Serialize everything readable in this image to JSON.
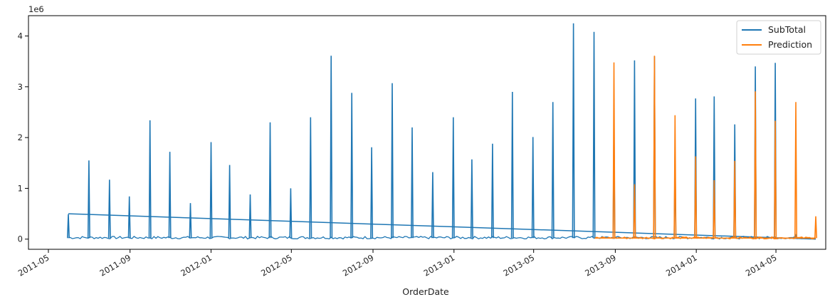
{
  "chart_data": {
    "type": "line",
    "title": "",
    "xlabel": "OrderDate",
    "ylabel": "",
    "y_offset_label": "1e6",
    "xlim": [
      "2011-04-01",
      "2014-07-15"
    ],
    "ylim": [
      -0.2,
      4.4
    ],
    "x_ticks": [
      "2011-05",
      "2011-09",
      "2012-01",
      "2012-05",
      "2012-09",
      "2013-01",
      "2013-05",
      "2013-09",
      "2014-01",
      "2014-05"
    ],
    "y_ticks": [
      0,
      1,
      2,
      3,
      4
    ],
    "grid": false,
    "legend": "top-right",
    "series": [
      {
        "name": "SubTotal",
        "color": "#1f77b4",
        "baseline_start": [
          "2011-05-31",
          0.5
        ],
        "baseline_end": [
          "2014-06-30",
          0.0
        ],
        "spikes": [
          [
            "2011-05-31",
            0.49
          ],
          [
            "2011-07-01",
            1.55
          ],
          [
            "2011-08-01",
            1.17
          ],
          [
            "2011-08-31",
            0.84
          ],
          [
            "2011-10-01",
            2.34
          ],
          [
            "2011-10-31",
            1.72
          ],
          [
            "2011-12-01",
            0.71
          ],
          [
            "2012-01-01",
            1.91
          ],
          [
            "2012-01-29",
            1.46
          ],
          [
            "2012-02-29",
            0.88
          ],
          [
            "2012-03-30",
            2.3
          ],
          [
            "2012-04-30",
            1.0
          ],
          [
            "2012-05-30",
            2.4
          ],
          [
            "2012-06-30",
            3.61
          ],
          [
            "2012-07-31",
            2.88
          ],
          [
            "2012-08-30",
            1.81
          ],
          [
            "2012-09-30",
            3.07
          ],
          [
            "2012-10-30",
            2.2
          ],
          [
            "2012-11-30",
            1.32
          ],
          [
            "2012-12-31",
            2.4
          ],
          [
            "2013-01-28",
            1.57
          ],
          [
            "2013-02-28",
            1.88
          ],
          [
            "2013-03-30",
            2.9
          ],
          [
            "2013-04-30",
            2.01
          ],
          [
            "2013-05-30",
            2.7
          ],
          [
            "2013-06-30",
            4.25
          ],
          [
            "2013-07-31",
            4.08
          ],
          [
            "2013-08-30",
            2.35
          ],
          [
            "2013-09-30",
            3.52
          ],
          [
            "2013-10-30",
            3.6
          ],
          [
            "2013-11-30",
            1.7
          ],
          [
            "2013-12-31",
            2.77
          ],
          [
            "2014-01-28",
            2.81
          ],
          [
            "2014-02-28",
            2.26
          ],
          [
            "2014-03-31",
            3.4
          ],
          [
            "2014-04-30",
            3.47
          ],
          [
            "2014-05-31",
            0.07
          ]
        ]
      },
      {
        "name": "Prediction",
        "color": "#ff7f0e",
        "baseline_start": [
          "2013-08-01",
          0.02
        ],
        "baseline_end": [
          "2014-06-30",
          0.02
        ],
        "spikes": [
          [
            "2013-08-30",
            3.48
          ],
          [
            "2013-09-30",
            1.08
          ],
          [
            "2013-10-30",
            3.61
          ],
          [
            "2013-11-30",
            2.44
          ],
          [
            "2013-12-31",
            1.63
          ],
          [
            "2014-01-28",
            1.16
          ],
          [
            "2014-02-28",
            1.54
          ],
          [
            "2014-03-31",
            2.91
          ],
          [
            "2014-04-30",
            2.33
          ],
          [
            "2014-05-31",
            2.7
          ],
          [
            "2014-06-30",
            0.45
          ]
        ]
      }
    ]
  }
}
